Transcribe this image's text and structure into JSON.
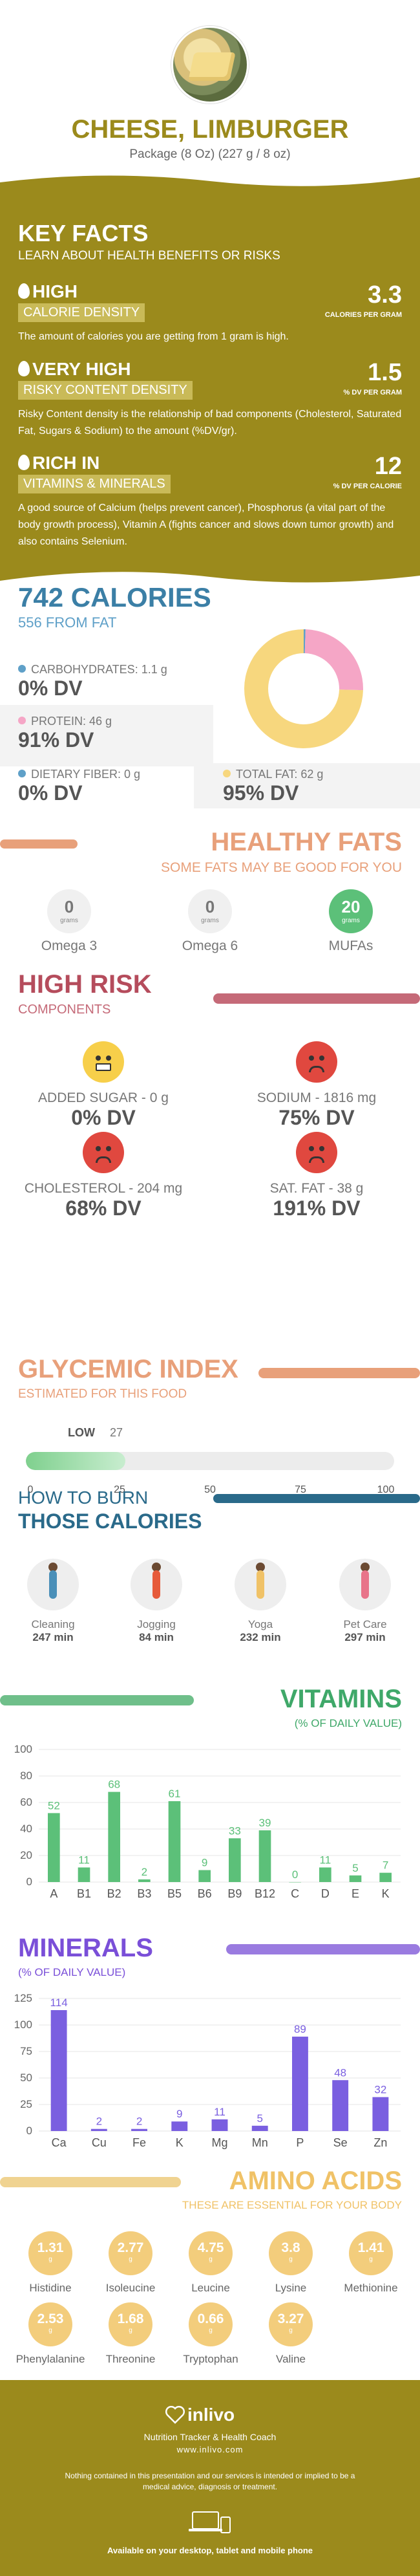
{
  "header": {
    "title": "CHEESE, LIMBURGER",
    "subtitle": "Package (8 Oz) (227 g / 8 oz)"
  },
  "key_facts": {
    "title": "KEY FACTS",
    "subtitle": "LEARN ABOUT HEALTH BENEFITS OR RISKS",
    "items": [
      {
        "level": "HIGH",
        "name": "CALORIE DENSITY",
        "value": "3.3",
        "unit": "CALORIES PER GRAM",
        "desc": "The amount of calories you are getting from 1 gram is high."
      },
      {
        "level": "VERY HIGH",
        "name": "RISKY CONTENT DENSITY",
        "value": "1.5",
        "unit": "% DV PER GRAM",
        "desc": "Risky Content density is the relationship of bad components (Cholesterol, Saturated Fat, Sugars & Sodium) to the amount (%DV/gr)."
      },
      {
        "level": "RICH  IN",
        "name": "VITAMINS & MINERALS",
        "value": "12",
        "unit": "% DV PER CALORIE",
        "desc": "A good source of Calcium (helps prevent cancer), Phosphorus (a vital part of the body growth process), Vitamin A (fights cancer and slows down tumor growth) and also contains Selenium."
      }
    ]
  },
  "calories": {
    "title": "742 CALORIES",
    "subtitle": "556 FROM FAT",
    "carbs_label": "CARBOHYDRATES: 1.1 g",
    "carbs_dv": "0% DV",
    "protein_label": "PROTEIN: 46 g",
    "protein_dv": "91% DV",
    "fiber_label": "DIETARY FIBER: 0 g",
    "fiber_dv": "0% DV",
    "fat_label": "TOTAL FAT: 62 g",
    "fat_dv": "95% DV",
    "colors": {
      "carbs": "#5fa0c8",
      "protein": "#f5a6c6",
      "fiber": "#5fa0c8",
      "fat": "#f7d77e"
    },
    "donut": {
      "carbs": 0.5,
      "protein": 25,
      "fat": 75
    }
  },
  "healthy_fats": {
    "title": "HEALTHY FATS",
    "subtitle": "SOME FATS MAY BE GOOD FOR YOU",
    "items": [
      {
        "value": "0",
        "unit": "grams",
        "name": "Omega 3"
      },
      {
        "value": "0",
        "unit": "grams",
        "name": "Omega 6"
      },
      {
        "value": "20",
        "unit": "grams",
        "name": "MUFAs"
      }
    ]
  },
  "high_risk": {
    "title": "HIGH RISK",
    "subtitle": "COMPONENTS",
    "items": [
      {
        "label": "ADDED SUGAR - 0 g",
        "dv": "0% DV",
        "icon": "happy-face-icon"
      },
      {
        "label": "SODIUM - 1816 mg",
        "dv": "75% DV",
        "icon": "sad-face-icon"
      },
      {
        "label": "CHOLESTEROL - 204 mg",
        "dv": "68% DV",
        "icon": "sad-face-icon"
      },
      {
        "label": "SAT. FAT - 38 g",
        "dv": "191% DV",
        "icon": "dizzy-face-icon"
      }
    ]
  },
  "glycemic": {
    "title": "GLYCEMIC INDEX",
    "subtitle": "ESTIMATED FOR THIS FOOD",
    "level": "LOW",
    "value": "27",
    "ticks": [
      "0",
      "25",
      "50",
      "75",
      "100"
    ]
  },
  "burn": {
    "title1": "HOW TO BURN",
    "title2": "THOSE CALORIES",
    "items": [
      {
        "name": "Cleaning",
        "minutes": "247 min"
      },
      {
        "name": "Jogging",
        "minutes": "84 min"
      },
      {
        "name": "Yoga",
        "minutes": "232 min"
      },
      {
        "name": "Pet Care",
        "minutes": "297 min"
      }
    ]
  },
  "vitamins": {
    "title": "VITAMINS",
    "subtitle": "(% OF DAILY VALUE)",
    "chart_data": {
      "type": "bar",
      "categories": [
        "A",
        "B1",
        "B2",
        "B3",
        "B5",
        "B6",
        "B9",
        "B12",
        "C",
        "D",
        "E",
        "K"
      ],
      "values": [
        52,
        11,
        68,
        2,
        61,
        9,
        33,
        39,
        0,
        11,
        5,
        7
      ],
      "ylim": [
        0,
        100
      ],
      "yticks": [
        0,
        20,
        40,
        60,
        80,
        100
      ],
      "color": "#5cc079"
    }
  },
  "minerals": {
    "title": "MINERALS",
    "subtitle": "(% OF DAILY VALUE)",
    "chart_data": {
      "type": "bar",
      "categories": [
        "Ca",
        "Cu",
        "Fe",
        "K",
        "Mg",
        "Mn",
        "P",
        "Se",
        "Zn"
      ],
      "values": [
        114,
        2,
        2,
        9,
        11,
        5,
        89,
        48,
        32
      ],
      "ylim": [
        0,
        125
      ],
      "yticks": [
        0,
        25,
        50,
        75,
        100,
        125
      ],
      "color": "#7a5fe0"
    }
  },
  "amino": {
    "title": "AMINO ACIDS",
    "subtitle": "THESE ARE ESSENTIAL FOR YOUR BODY",
    "items": [
      {
        "value": "1.31",
        "unit": "g",
        "name": "Histidine"
      },
      {
        "value": "2.77",
        "unit": "g",
        "name": "Isoleucine"
      },
      {
        "value": "4.75",
        "unit": "g",
        "name": "Leucine"
      },
      {
        "value": "3.8",
        "unit": "g",
        "name": "Lysine"
      },
      {
        "value": "1.41",
        "unit": "g",
        "name": "Methionine"
      },
      {
        "value": "2.53",
        "unit": "g",
        "name": "Phenylalanine"
      },
      {
        "value": "1.68",
        "unit": "g",
        "name": "Threonine"
      },
      {
        "value": "0.66",
        "unit": "g",
        "name": "Tryptophan"
      },
      {
        "value": "3.27",
        "unit": "g",
        "name": "Valine"
      }
    ]
  },
  "footer": {
    "brand": "inlivo",
    "tagline": "Nutrition Tracker & Health Coach",
    "url": "www.inlivo.com",
    "disclaimer": "Nothing contained in this presentation and our services is intended or implied to be a medical advice, diagnosis or treatment.",
    "available": "Available on your desktop, tablet and mobile phone"
  }
}
